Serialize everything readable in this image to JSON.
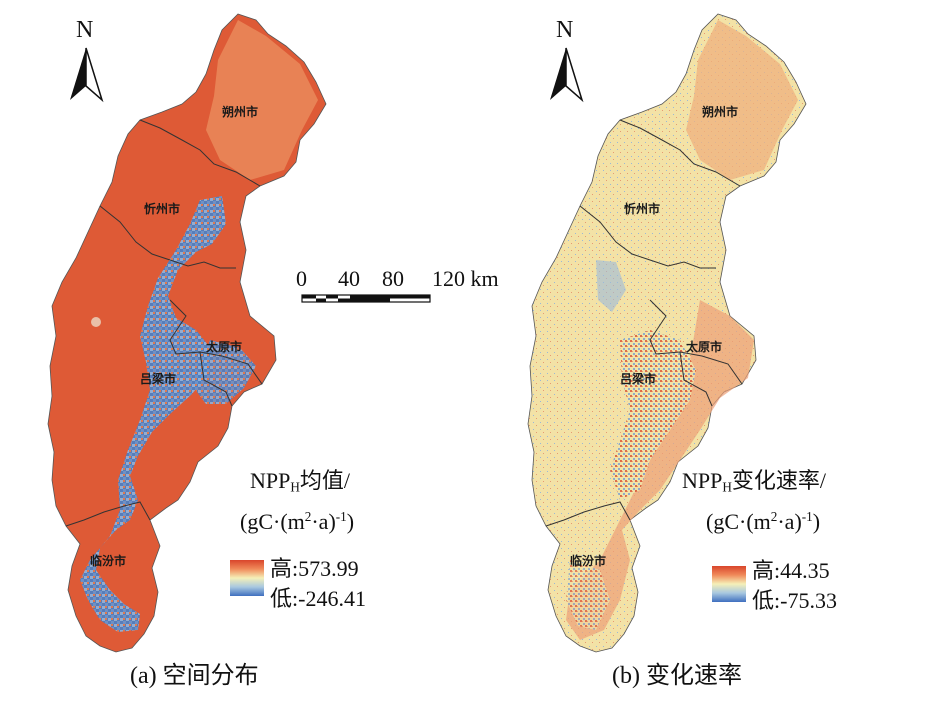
{
  "north_label": "N",
  "cities": {
    "shuozhou": "朔州市",
    "xinzhou": "忻州市",
    "taiyuan": "太原市",
    "lvliang": "吕梁市",
    "linfen": "临汾市"
  },
  "scale_bar": {
    "ticks": [
      "0",
      "40",
      "80",
      "120 km"
    ]
  },
  "panel_a": {
    "legend_title_main": "NPP",
    "legend_title_sub": "H",
    "legend_title_rest": "均值/",
    "legend_unit_open": "(gC·(m",
    "legend_unit_sup1": "2",
    "legend_unit_mid": "·a)",
    "legend_unit_sup2": "-1",
    "legend_unit_close": ")",
    "high_label": "高:573.99",
    "low_label": "低:-246.41",
    "caption": "(a) 空间分布",
    "colors": {
      "high": "#d9452b",
      "mid": "#f3efb0",
      "low": "#3f6fbf"
    }
  },
  "panel_b": {
    "legend_title_main": "NPP",
    "legend_title_sub": "H",
    "legend_title_rest": "变化速率/",
    "legend_unit_open": "(gC·(m",
    "legend_unit_sup1": "2",
    "legend_unit_mid": "·a)",
    "legend_unit_sup2": "-1",
    "legend_unit_close": ")",
    "high_label": "高:44.35",
    "low_label": "低:-75.33",
    "caption": "(b) 变化速率",
    "colors": {
      "high": "#d9452b",
      "mid": "#f3efb0",
      "low": "#3f6fbf"
    }
  }
}
